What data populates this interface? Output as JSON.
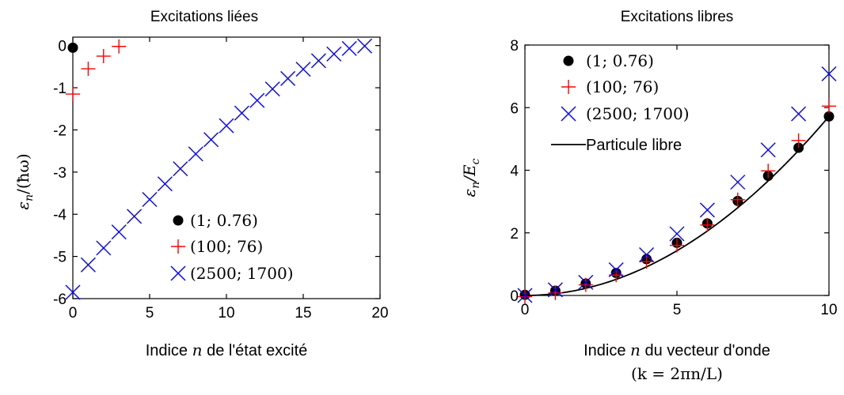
{
  "chart_data": [
    {
      "type": "scatter",
      "title": "Excitations liées",
      "xlabel_parts": [
        "Indice ",
        "n",
        " de l'état excité"
      ],
      "ylabel_parts": [
        "ε",
        "n",
        "/(ħω)"
      ],
      "xlim": [
        0,
        20
      ],
      "ylim": [
        -6,
        0.2
      ],
      "xticks": [
        0,
        5,
        10,
        15,
        20
      ],
      "xtick_labels": [
        "0",
        "5",
        "10",
        "15",
        "20"
      ],
      "yticks": [
        0,
        -1,
        -2,
        -3,
        -4,
        -5,
        -6
      ],
      "ytick_labels": [
        "0",
        "-1",
        "-2",
        "-3",
        "-4",
        "-5",
        "-6"
      ],
      "legend_position": "lower-right",
      "series": [
        {
          "name": "(1; 0.76)",
          "marker": "dot",
          "color": "#000000",
          "points": [
            [
              0,
              -0.05
            ]
          ]
        },
        {
          "name": "(100; 76)",
          "marker": "plus",
          "color": "#ff0000",
          "points": [
            [
              0,
              -1.15
            ],
            [
              1,
              -0.55
            ],
            [
              2,
              -0.25
            ],
            [
              3,
              -0.02
            ]
          ]
        },
        {
          "name": "(2500; 1700)",
          "marker": "cross",
          "color": "#0000ff",
          "points": [
            [
              0,
              -5.85
            ],
            [
              1,
              -5.2
            ],
            [
              2,
              -4.8
            ],
            [
              3,
              -4.42
            ],
            [
              4,
              -4.05
            ],
            [
              5,
              -3.65
            ],
            [
              6,
              -3.28
            ],
            [
              7,
              -2.92
            ],
            [
              8,
              -2.57
            ],
            [
              9,
              -2.23
            ],
            [
              10,
              -1.9
            ],
            [
              11,
              -1.6
            ],
            [
              12,
              -1.3
            ],
            [
              13,
              -1.03
            ],
            [
              14,
              -0.78
            ],
            [
              15,
              -0.56
            ],
            [
              16,
              -0.36
            ],
            [
              17,
              -0.2
            ],
            [
              18,
              -0.07
            ],
            [
              19,
              -0.01
            ]
          ]
        }
      ]
    },
    {
      "type": "scatter",
      "title": "Excitations libres",
      "xlabel_parts": [
        "Indice ",
        "n",
        " du vecteur d'onde"
      ],
      "xlabel2": "(k = 2πn/L)",
      "ylabel_parts": [
        "ε",
        "n",
        "/E",
        "c"
      ],
      "xlim": [
        0,
        10
      ],
      "ylim": [
        0,
        8
      ],
      "xticks": [
        0,
        5,
        10
      ],
      "xtick_labels": [
        "0",
        "5",
        "10"
      ],
      "yticks": [
        0,
        2,
        4,
        6,
        8
      ],
      "ytick_labels": [
        "0",
        "2",
        "4",
        "6",
        "8"
      ],
      "legend_position": "top-left",
      "series": [
        {
          "name": "(1; 0.76)",
          "marker": "dot",
          "color": "#000000",
          "points": [
            [
              0,
              0.02
            ],
            [
              1,
              0.15
            ],
            [
              2,
              0.38
            ],
            [
              3,
              0.72
            ],
            [
              4,
              1.16
            ],
            [
              5,
              1.68
            ],
            [
              6,
              2.3
            ],
            [
              7,
              3.02
            ],
            [
              8,
              3.82
            ],
            [
              9,
              4.72
            ],
            [
              10,
              5.72
            ]
          ]
        },
        {
          "name": "(100; 76)",
          "marker": "plus",
          "color": "#ff0000",
          "points": [
            [
              0,
              -0.04
            ],
            [
              1,
              0.08
            ],
            [
              2,
              0.34
            ],
            [
              3,
              0.65
            ],
            [
              4,
              1.08
            ],
            [
              5,
              1.6
            ],
            [
              6,
              2.25
            ],
            [
              7,
              3.06
            ],
            [
              8,
              3.98
            ],
            [
              9,
              4.95
            ],
            [
              10,
              6.05
            ]
          ]
        },
        {
          "name": "(2500; 1700)",
          "marker": "cross",
          "color": "#0000ff",
          "points": [
            [
              0,
              0.0
            ],
            [
              1,
              0.18
            ],
            [
              2,
              0.42
            ],
            [
              3,
              0.82
            ],
            [
              4,
              1.3
            ],
            [
              5,
              1.97
            ],
            [
              6,
              2.73
            ],
            [
              7,
              3.62
            ],
            [
              8,
              4.65
            ],
            [
              9,
              5.8
            ],
            [
              10,
              7.08
            ]
          ]
        },
        {
          "name": "Particule libre",
          "marker": "line",
          "color": "#000000",
          "curve": "parabola",
          "coefficient": 0.0572
        }
      ]
    }
  ]
}
